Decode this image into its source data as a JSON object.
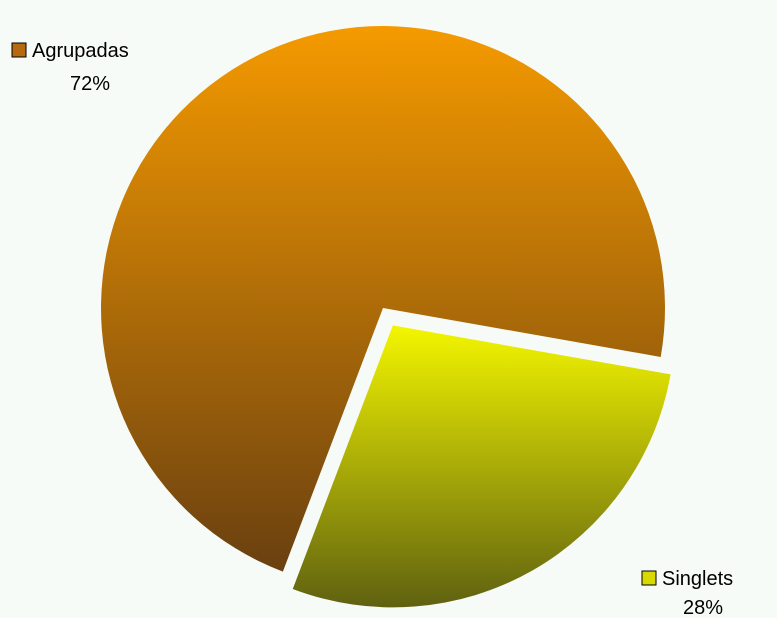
{
  "chart_data": {
    "type": "pie",
    "title": "",
    "categories": [
      "Agrupadas",
      "Singlets"
    ],
    "values": [
      72,
      28
    ],
    "value_labels": [
      "72%",
      "28%"
    ],
    "exploded": [
      false,
      true
    ],
    "colors": {
      "Agrupadas": {
        "top": "#f59a00",
        "bottom": "#6a4010"
      },
      "Singlets": {
        "top": "#f4f600",
        "bottom": "#5f6110"
      }
    },
    "legend": "inline-labels"
  }
}
